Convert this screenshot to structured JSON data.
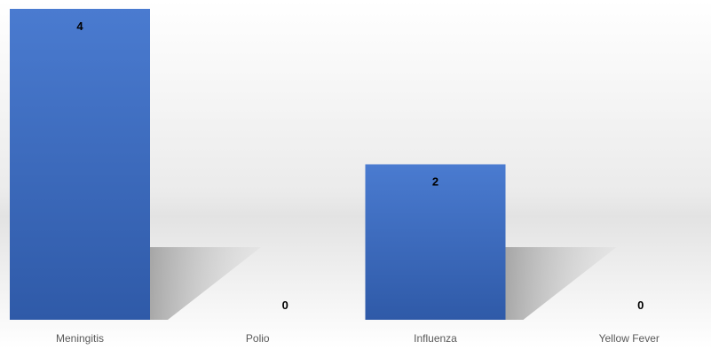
{
  "chart_data": {
    "type": "bar",
    "title": "",
    "xlabel": "",
    "ylabel": "",
    "categories": [
      "Meningitis",
      "Polio",
      "Influenza",
      "Yellow Fever"
    ],
    "values": [
      4,
      0,
      2,
      0
    ],
    "ylim": [
      0,
      4
    ],
    "grid": false,
    "legend": "none",
    "colors": {
      "bar_top": "#4a7bd0",
      "bar_bottom": "#2f5aa8",
      "shadow": "#b0b0b0",
      "background_light": "#ffffff",
      "background_mid": "#e6e6e6",
      "category_text": "#595959",
      "value_text": "#000000"
    }
  }
}
